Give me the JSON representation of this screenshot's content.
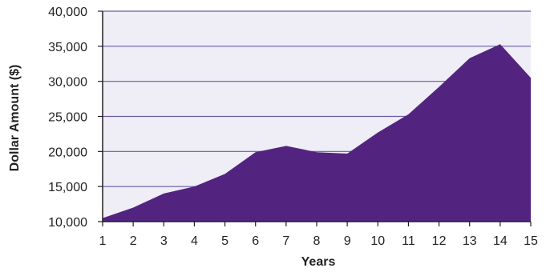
{
  "chart_data": {
    "type": "area",
    "title": "",
    "xlabel": "Years",
    "ylabel": "Dollar Amount ($)",
    "x": [
      1,
      2,
      3,
      4,
      5,
      6,
      7,
      8,
      9,
      10,
      11,
      12,
      13,
      14,
      15
    ],
    "series": [
      {
        "values": [
          10500,
          12000,
          14000,
          15000,
          16800,
          19900,
          20800,
          19900,
          19700,
          22700,
          25300,
          29200,
          33300,
          35300,
          30500
        ]
      }
    ],
    "xlim": [
      1,
      15
    ],
    "ylim": [
      10000,
      40000
    ],
    "yticks": [
      10000,
      15000,
      20000,
      25000,
      30000,
      35000,
      40000
    ],
    "ytick_labels": [
      "10,000",
      "15,000",
      "20,000",
      "25,000",
      "30,000",
      "35,000",
      "40,000"
    ],
    "xticks": [
      1,
      2,
      3,
      4,
      5,
      6,
      7,
      8,
      9,
      10,
      11,
      12,
      13,
      14,
      15
    ],
    "xtick_labels": [
      "1",
      "2",
      "3",
      "4",
      "5",
      "6",
      "7",
      "8",
      "9",
      "10",
      "11",
      "12",
      "13",
      "14",
      "15"
    ],
    "grid": true,
    "legend": "none",
    "colors": {
      "area_fill": "#52247f",
      "plot_background": "#efedf6",
      "gridline": "#6b5aa6",
      "axis": "#231f20",
      "text": "#231f20"
    }
  }
}
